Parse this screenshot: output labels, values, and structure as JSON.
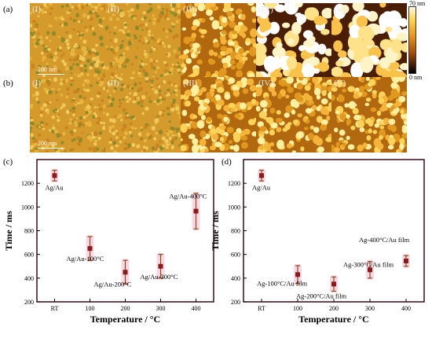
{
  "panel_labels": [
    "(a)",
    "(b)",
    "(c)",
    "(d)"
  ],
  "roman_numerals": [
    "(I)",
    "(II)",
    "(III)",
    "(IV)",
    "(V)"
  ],
  "scale_bar_text": "200 nm",
  "colorbar": {
    "max_label": "70 nm",
    "min_label": "0 nm"
  },
  "afm_rows": {
    "a": {
      "texture_levels": [
        0.05,
        0.07,
        0.45,
        0.75,
        0.9
      ]
    },
    "b": {
      "texture_levels": [
        0.05,
        0.06,
        0.3,
        0.38,
        0.45
      ]
    }
  },
  "chart_data": [
    {
      "type": "scatter",
      "panel": "(c)",
      "xlabel": "Temperature / °C",
      "ylabel": "Time / ms",
      "categories": [
        "RT",
        "100",
        "200",
        "300",
        "400"
      ],
      "ylim": [
        200,
        1400
      ],
      "yticks": [
        200,
        400,
        600,
        800,
        1000,
        1200
      ],
      "marker_color": "#8b1a1a",
      "points": [
        {
          "x": "RT",
          "y": 1265,
          "err": 45,
          "label": "Ag/Au"
        },
        {
          "x": "100",
          "y": 650,
          "err": 100,
          "label": "Ag/Au-100°C"
        },
        {
          "x": "200",
          "y": 450,
          "err": 100,
          "label": "Ag/Au-200°C"
        },
        {
          "x": "300",
          "y": 500,
          "err": 100,
          "label": "Ag/Au-300°C"
        },
        {
          "x": "400",
          "y": 965,
          "err": 150,
          "label": "Ag/Au-400°C"
        }
      ]
    },
    {
      "type": "scatter",
      "panel": "(d)",
      "xlabel": "Temperature / °C",
      "ylabel": "Time / ms",
      "categories": [
        "RT",
        "100",
        "200",
        "300",
        "400"
      ],
      "ylim": [
        200,
        1400
      ],
      "yticks": [
        200,
        400,
        600,
        800,
        1000,
        1200
      ],
      "marker_color": "#8b1a1a",
      "points": [
        {
          "x": "RT",
          "y": 1265,
          "err": 45,
          "label": "Ag/Au"
        },
        {
          "x": "100",
          "y": 430,
          "err": 75,
          "label": "Ag-100°C/Au film"
        },
        {
          "x": "200",
          "y": 350,
          "err": 60,
          "label": "Ag-200°C/Au film"
        },
        {
          "x": "300",
          "y": 470,
          "err": 70,
          "label": "Ag-300°C/Au film"
        },
        {
          "x": "400",
          "y": 545,
          "err": 45,
          "label": "Ag-400°C/Au film"
        }
      ]
    }
  ]
}
